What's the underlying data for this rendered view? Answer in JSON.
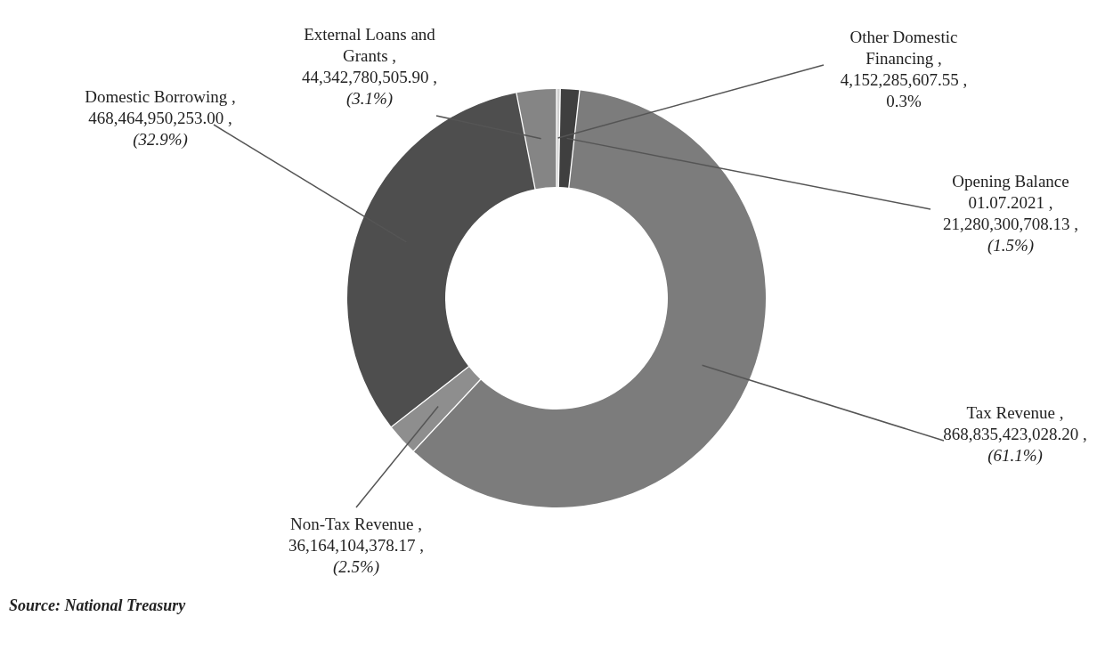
{
  "chart_data": {
    "type": "donut",
    "categories": [
      "Other Domestic Financing",
      "Opening Balance 01.07.2021",
      "Tax Revenue",
      "Non-Tax Revenue",
      "Domestic Borrowing",
      "External Loans and Grants"
    ],
    "values": [
      4152285607.55,
      21280300708.13,
      868835423028.2,
      36164104378.17,
      468464950253.0,
      44342780505.9
    ],
    "value_labels": [
      ", 4,152,285,607.55 , 0.3%",
      ", 21,280,300,708.13 , (1.5%)",
      ", 868,835,423,028.20 , (61.1%)",
      ", 36,164,104,378.17 , (2.5%)",
      ", 468,464,950,253.00 , (32.9%)",
      ", 44,342,780,505.90 , (3.1%)"
    ],
    "colors": [
      "#cfcfcf",
      "#3f3f3f",
      "#7c7c7c",
      "#8e8e8e",
      "#4e4e4e",
      "#858585"
    ],
    "legend": false,
    "annotations": [
      "Source: National Treasury"
    ]
  }
}
